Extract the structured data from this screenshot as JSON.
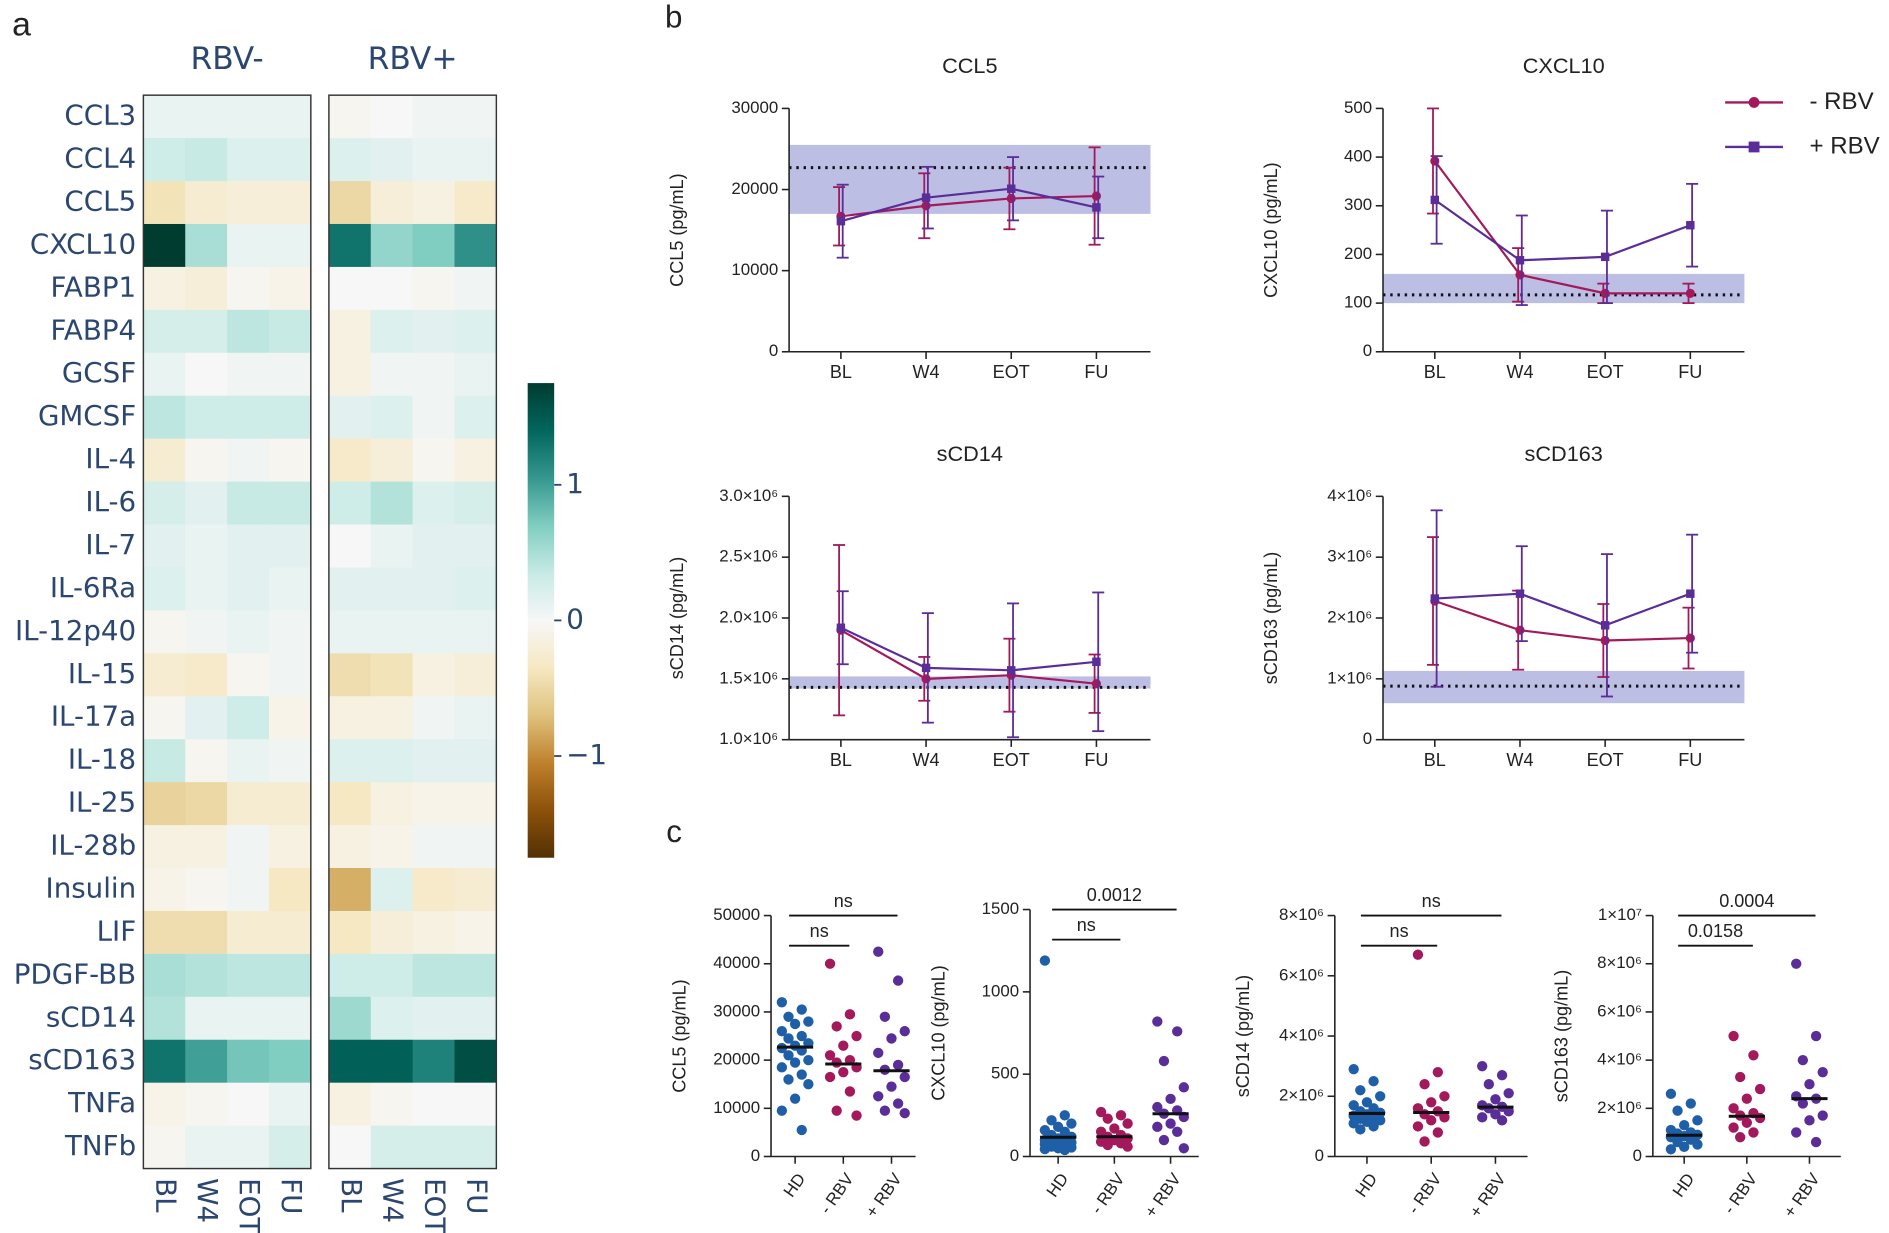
{
  "chart_data": [
    {
      "type": "heatmap",
      "panel": "a",
      "groups": [
        "RBV-",
        "RBV+"
      ],
      "columns": [
        "BL",
        "W4",
        "EOT",
        "FU"
      ],
      "rows": [
        "CCL3",
        "CCL4",
        "CCL5",
        "CXCL10",
        "FABP1",
        "FABP4",
        "GCSF",
        "GMCSF",
        "IL-4",
        "IL-6",
        "IL-7",
        "IL-6Ra",
        "IL-12p40",
        "IL-15",
        "IL-17a",
        "IL-18",
        "IL-25",
        "IL-28b",
        "Insulin",
        "LIF",
        "PDGF-BB",
        "sCD14",
        "sCD163",
        "TNFa",
        "TNFb"
      ],
      "values": [
        [
          0.1,
          0.1,
          0.1,
          0.1,
          -0.05,
          0,
          0.05,
          0.05
        ],
        [
          0.3,
          0.35,
          0.2,
          0.2,
          0.2,
          0.15,
          0.1,
          0.1
        ],
        [
          -0.4,
          -0.25,
          -0.2,
          -0.2,
          -0.5,
          -0.2,
          -0.15,
          -0.3
        ],
        [
          1.75,
          0.5,
          0.1,
          0.1,
          1.3,
          0.6,
          0.7,
          1.1
        ],
        [
          -0.15,
          -0.2,
          -0.05,
          -0.1,
          0,
          0,
          -0.05,
          0.05
        ],
        [
          0.25,
          0.25,
          0.4,
          0.35,
          -0.15,
          0.2,
          0.15,
          0.2
        ],
        [
          0.1,
          0,
          0.05,
          0.05,
          -0.15,
          0.05,
          0.05,
          0.1
        ],
        [
          0.4,
          0.3,
          0.3,
          0.3,
          0.15,
          0.2,
          0.05,
          0.2
        ],
        [
          -0.25,
          -0.05,
          0.05,
          -0.05,
          -0.3,
          -0.2,
          -0.05,
          -0.15
        ],
        [
          0.25,
          0.15,
          0.35,
          0.35,
          0.3,
          0.45,
          0.2,
          0.25
        ],
        [
          0.15,
          0.1,
          0.15,
          0.15,
          0,
          0.1,
          0.15,
          0.15
        ],
        [
          0.2,
          0.1,
          0.15,
          0.1,
          0.15,
          0.15,
          0.15,
          0.2
        ],
        [
          -0.05,
          0.05,
          0.1,
          0.05,
          0.1,
          0.1,
          0.1,
          0.1
        ],
        [
          -0.25,
          -0.3,
          -0.05,
          0.05,
          -0.45,
          -0.4,
          -0.15,
          -0.2
        ],
        [
          -0.05,
          0.15,
          0.3,
          -0.1,
          -0.15,
          -0.15,
          0.05,
          0.1
        ],
        [
          0.35,
          -0.05,
          0.1,
          0.05,
          0.2,
          0.2,
          0.15,
          0.15
        ],
        [
          -0.55,
          -0.5,
          -0.25,
          -0.25,
          -0.35,
          -0.15,
          -0.1,
          -0.1
        ],
        [
          -0.15,
          -0.15,
          0.05,
          -0.15,
          -0.15,
          -0.1,
          0.05,
          0.05
        ],
        [
          -0.1,
          -0.05,
          0.05,
          -0.35,
          -0.8,
          0.2,
          -0.3,
          -0.25
        ],
        [
          -0.45,
          -0.45,
          -0.25,
          -0.25,
          -0.35,
          -0.2,
          -0.15,
          -0.1
        ],
        [
          0.5,
          0.45,
          0.4,
          0.4,
          0.3,
          0.3,
          0.4,
          0.4
        ],
        [
          0.45,
          0.1,
          0.1,
          0.1,
          0.55,
          0.2,
          0.15,
          0.15
        ],
        [
          1.3,
          1.0,
          0.75,
          0.7,
          1.45,
          1.45,
          1.2,
          1.6
        ],
        [
          -0.1,
          -0.05,
          0,
          0.1,
          -0.15,
          -0.05,
          0,
          0
        ],
        [
          -0.05,
          0.1,
          0.1,
          0.25,
          0,
          0.25,
          0.25,
          0.25
        ]
      ],
      "zlim": [
        -1.75,
        1.75
      ],
      "zticks": [
        {
          "value": -1,
          "label": "−1"
        },
        0,
        1
      ],
      "colorscale": [
        "#543005",
        "#8c510a",
        "#bf812d",
        "#dfc27d",
        "#f6e8c3",
        "#f7f7f7",
        "#c7eae5",
        "#80cdc1",
        "#35978f",
        "#01665e",
        "#003c30"
      ]
    },
    {
      "type": "line",
      "panel": "b",
      "categories": [
        "BL",
        "W4",
        "EOT",
        "FU"
      ],
      "series": [
        {
          "name": "- RBV",
          "color": "#a3195b",
          "marker": "circle"
        },
        {
          "name": "+ RBV",
          "color": "#5a2d98",
          "marker": "square"
        }
      ],
      "band_color": "#9fa2d8",
      "legend": "upper right",
      "subplots": [
        {
          "title": "CCL5",
          "ylabel": "CCL5 (pg/mL)",
          "ylim": [
            0,
            30000
          ],
          "yticks": [
            0,
            10000,
            20000,
            30000
          ],
          "band": [
            17000,
            25500
          ],
          "reference": 22700,
          "values": [
            [
              16700,
              18000,
              18900,
              19200
            ],
            [
              16100,
              19000,
              20100,
              17800
            ]
          ],
          "errors": [
            [
              3600,
              4000,
              3800,
              6000
            ],
            [
              4500,
              3800,
              3900,
              3800
            ]
          ]
        },
        {
          "title": "CXCL10",
          "ylabel": "CXCL10 (pg/mL)",
          "ylim": [
            0,
            500
          ],
          "yticks": [
            0,
            100,
            200,
            300,
            400,
            500
          ],
          "band": [
            100,
            160
          ],
          "reference": 117,
          "values": [
            [
              392,
              158,
              120,
              120
            ],
            [
              312,
              188,
              195,
              260
            ]
          ],
          "errors": [
            [
              108,
              55,
              20,
              20
            ],
            [
              90,
              92,
              95,
              85
            ]
          ]
        },
        {
          "title": "sCD14",
          "ylabel": "sCD14 (pg/mL)",
          "ylim": [
            1000000,
            3000000
          ],
          "yticks": [
            {
              "value": 1000000,
              "label": "1.0×10⁶"
            },
            {
              "value": 1500000,
              "label": "1.5×10⁶"
            },
            {
              "value": 2000000,
              "label": "2.0×10⁶"
            },
            {
              "value": 2500000,
              "label": "2.5×10⁶"
            },
            {
              "value": 3000000,
              "label": "3.0×10⁶"
            }
          ],
          "band": [
            1420000,
            1520000
          ],
          "reference": 1430000,
          "values": [
            [
              1900000,
              1500000,
              1530000,
              1460000
            ],
            [
              1920000,
              1590000,
              1570000,
              1640000
            ]
          ],
          "errors": [
            [
              700000,
              180000,
              300000,
              240000
            ],
            [
              300000,
              450000,
              550000,
              570000
            ]
          ]
        },
        {
          "title": "sCD163",
          "ylabel": "sCD163 (pg/mL)",
          "ylim": [
            0,
            4000000
          ],
          "yticks": [
            0,
            {
              "value": 1000000,
              "label": "1×10⁶"
            },
            {
              "value": 2000000,
              "label": "2×10⁶"
            },
            {
              "value": 3000000,
              "label": "3×10⁶"
            },
            {
              "value": 4000000,
              "label": "4×10⁶"
            }
          ],
          "band": [
            600000,
            1130000
          ],
          "reference": 880000,
          "values": [
            [
              2280000,
              1800000,
              1630000,
              1670000
            ],
            [
              2320000,
              2400000,
              1880000,
              2400000
            ]
          ],
          "errors": [
            [
              1050000,
              650000,
              600000,
              500000
            ],
            [
              1450000,
              780000,
              1170000,
              970000
            ]
          ]
        }
      ]
    },
    {
      "type": "dot",
      "panel": "c",
      "categories": [
        "HD",
        "- RBV",
        "+ RBV"
      ],
      "colors": [
        "#1f5fa8",
        "#a3195b",
        "#5a2d98"
      ],
      "subplots": [
        {
          "ylabel": "CCL5 (pg/mL)",
          "ylim": [
            0,
            50000
          ],
          "yticks": [
            0,
            10000,
            20000,
            30000,
            40000,
            50000
          ],
          "points": [
            [
              32000,
              30500,
              29000,
              28000,
              27500,
              26000,
              25000,
              24500,
              23500,
              23000,
              22500,
              22000,
              21000,
              20000,
              19500,
              18500,
              17000,
              16000,
              15000,
              12000,
              9500,
              5500
            ],
            [
              40000,
              29500,
              27000,
              25000,
              23000,
              21000,
              20000,
              19500,
              18500,
              17500,
              16500,
              13500,
              9500,
              8500
            ],
            [
              42500,
              36500,
              29000,
              26000,
              24500,
              21500,
              19000,
              18000,
              16500,
              14500,
              12500,
              11000,
              9500,
              9000
            ]
          ],
          "medians": [
            22700,
            19200,
            17800
          ],
          "comparisons": [
            {
              "from": 0,
              "to": 1,
              "label": "ns"
            },
            {
              "from": 0,
              "to": 2,
              "label": "ns"
            }
          ]
        },
        {
          "ylabel": "CXCL10 (pg/mL)",
          "ylim": [
            0,
            1500
          ],
          "yticks": [
            0,
            500,
            1000,
            1500
          ],
          "points": [
            [
              1190,
              250,
              220,
              200,
              180,
              160,
              150,
              130,
              120,
              110,
              100,
              95,
              90,
              85,
              80,
              75,
              70,
              60,
              55,
              50,
              45,
              40
            ],
            [
              270,
              250,
              230,
              200,
              170,
              150,
              130,
              120,
              110,
              100,
              90,
              80,
              70,
              60
            ],
            [
              820,
              760,
              580,
              420,
              350,
              300,
              280,
              260,
              240,
              200,
              180,
              150,
              100,
              50
            ]
          ],
          "medians": [
            117,
            120,
            260
          ],
          "comparisons": [
            {
              "from": 0,
              "to": 1,
              "label": "ns"
            },
            {
              "from": 0,
              "to": 2,
              "label": "0.0012"
            }
          ]
        },
        {
          "ylabel": "sCD14 (pg/mL)",
          "ylim": [
            0,
            8000000
          ],
          "yticks": [
            0,
            {
              "value": 2000000,
              "label": "2×10⁶"
            },
            {
              "value": 4000000,
              "label": "4×10⁶"
            },
            {
              "value": 6000000,
              "label": "6×10⁶"
            },
            {
              "value": 8000000,
              "label": "8×10⁶"
            }
          ],
          "points": [
            [
              2900000,
              2500000,
              2200000,
              2000000,
              1800000,
              1700000,
              1600000,
              1500000,
              1450000,
              1400000,
              1350000,
              1300000,
              1250000,
              1200000,
              1150000,
              1100000,
              1000000,
              900000
            ],
            [
              6700000,
              2800000,
              2400000,
              2000000,
              1800000,
              1600000,
              1500000,
              1400000,
              1300000,
              1200000,
              1000000,
              800000,
              500000
            ],
            [
              3000000,
              2700000,
              2400000,
              2100000,
              1900000,
              1700000,
              1650000,
              1600000,
              1500000,
              1400000,
              1300000,
              1200000
            ]
          ],
          "medians": [
            1430000,
            1460000,
            1640000
          ],
          "comparisons": [
            {
              "from": 0,
              "to": 1,
              "label": "ns"
            },
            {
              "from": 0,
              "to": 2,
              "label": "ns"
            }
          ]
        },
        {
          "ylabel": "sCD163 (pg/mL)",
          "ylim": [
            0,
            10000000
          ],
          "yticks": [
            0,
            {
              "value": 2000000,
              "label": "2×10⁶"
            },
            {
              "value": 4000000,
              "label": "4×10⁶"
            },
            {
              "value": 6000000,
              "label": "6×10⁶"
            },
            {
              "value": 8000000,
              "label": "8×10⁶"
            },
            {
              "value": 10000000,
              "label": "1×10⁷"
            }
          ],
          "points": [
            [
              2600000,
              2200000,
              1900000,
              1500000,
              1300000,
              1100000,
              1000000,
              950000,
              900000,
              850000,
              800000,
              700000,
              600000,
              500000,
              400000,
              300000
            ],
            [
              5000000,
              4200000,
              3300000,
              2800000,
              2400000,
              2000000,
              1800000,
              1700000,
              1600000,
              1400000,
              1200000,
              1000000,
              800000
            ],
            [
              8000000,
              5000000,
              4000000,
              3500000,
              3000000,
              2500000,
              2400000,
              2200000,
              1700000,
              1500000,
              1000000,
              600000
            ]
          ],
          "medians": [
            880000,
            1670000,
            2400000
          ],
          "comparisons": [
            {
              "from": 0,
              "to": 1,
              "label": "0.0158"
            },
            {
              "from": 0,
              "to": 2,
              "label": "0.0004"
            }
          ]
        }
      ]
    }
  ]
}
